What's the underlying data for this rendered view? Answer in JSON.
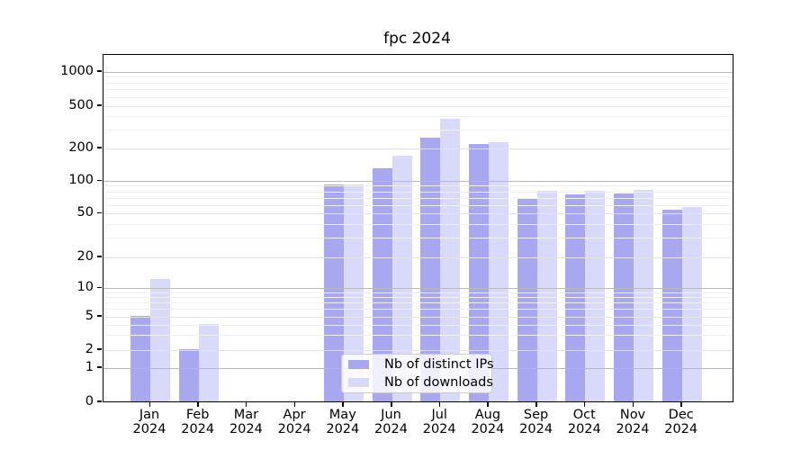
{
  "chart": {
    "title": "fpc 2024",
    "colors": {
      "distinct_ips": "#a8a8f0",
      "downloads": "#d9d9fa",
      "decade_gridline": "#b9b9b9"
    }
  },
  "chart_data": {
    "type": "bar",
    "title": "fpc 2024",
    "xlabel": "",
    "ylabel": "",
    "yscale": "symlog",
    "grid": true,
    "legend_position": "lower center (inside plot)",
    "categories": [
      "Jan 2024",
      "Feb 2024",
      "Mar 2024",
      "Apr 2024",
      "May 2024",
      "Jun 2024",
      "Jul 2024",
      "Aug 2024",
      "Sep 2024",
      "Oct 2024",
      "Nov 2024",
      "Dec 2024"
    ],
    "series": [
      {
        "name": "Nb of distinct IPs",
        "color": "#a8a8f0",
        "values": [
          5,
          2,
          0,
          0,
          91,
          130,
          250,
          215,
          68,
          74,
          76,
          54
        ]
      },
      {
        "name": "Nb of downloads",
        "color": "#d9d9fa",
        "values": [
          12,
          4,
          0,
          0,
          91,
          168,
          375,
          225,
          80,
          80,
          82,
          57
        ]
      }
    ],
    "ylim": [
      0,
      1400
    ],
    "y_ticks": [
      0,
      1,
      2,
      5,
      10,
      20,
      50,
      100,
      200,
      500,
      1000
    ],
    "y_decade_ticks": [
      1,
      10,
      100,
      1000
    ],
    "y_minor_ticks": [
      3,
      4,
      6,
      7,
      8,
      9,
      30,
      40,
      60,
      70,
      80,
      90,
      300,
      400,
      600,
      700,
      800,
      900
    ]
  }
}
